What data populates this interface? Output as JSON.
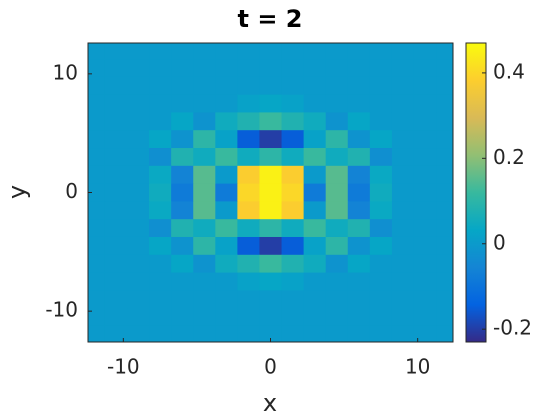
{
  "chart_data": {
    "type": "heatmap",
    "title": "t = 2",
    "x_label": "x",
    "y_label": "y",
    "colormap": "parula",
    "x": [
      -12,
      -10.5,
      -9,
      -7.5,
      -6,
      -4.5,
      -3,
      -1.5,
      0,
      1.5,
      3,
      4.5,
      6,
      7.5,
      9,
      10.5,
      12
    ],
    "y": [
      12,
      10.5,
      9,
      7.5,
      6,
      4.5,
      3,
      1.5,
      0,
      -1.5,
      -3,
      -4.5,
      -6,
      -7.5,
      -9,
      -10.5,
      -12
    ],
    "z": [
      [
        0,
        0,
        0,
        0,
        0,
        0,
        0,
        0,
        0,
        0,
        0,
        0,
        0,
        0,
        0,
        0,
        0
      ],
      [
        0,
        0,
        0,
        0,
        0,
        0,
        0,
        0,
        0,
        0,
        0,
        0,
        0,
        0,
        0,
        0,
        0
      ],
      [
        0,
        0,
        0,
        0,
        0,
        0,
        0,
        0,
        0,
        0,
        0,
        0,
        0,
        0,
        0,
        0,
        0
      ],
      [
        0,
        0,
        0,
        0,
        0,
        0,
        0,
        0.02,
        0.03,
        0.02,
        0,
        0,
        0,
        0,
        0,
        0,
        0
      ],
      [
        0,
        0,
        0,
        0,
        0.03,
        -0.02,
        0.05,
        0.08,
        0.12,
        0.08,
        0.05,
        -0.02,
        0.03,
        0,
        0,
        0,
        0
      ],
      [
        0,
        0,
        0,
        0.03,
        -0.02,
        0.1,
        0.02,
        -0.15,
        -0.2,
        -0.15,
        0.02,
        0.1,
        -0.02,
        0.03,
        0,
        0,
        0
      ],
      [
        0,
        0,
        0,
        -0.03,
        0.08,
        0.05,
        0.12,
        0.05,
        0.1,
        0.05,
        0.12,
        0.05,
        0.08,
        -0.03,
        0,
        0,
        0
      ],
      [
        0,
        0,
        0,
        0.04,
        -0.06,
        0.15,
        0,
        0.38,
        0.45,
        0.38,
        0,
        0.15,
        -0.06,
        0.04,
        0,
        0,
        0
      ],
      [
        0,
        0,
        0,
        0.05,
        -0.08,
        0.15,
        -0.08,
        0.4,
        0.45,
        0.4,
        -0.08,
        0.15,
        -0.08,
        0.05,
        0,
        0,
        0
      ],
      [
        0,
        0,
        0,
        0.04,
        -0.06,
        0.15,
        0,
        0.38,
        0.45,
        0.38,
        0,
        0.15,
        -0.06,
        0.04,
        0,
        0,
        0
      ],
      [
        0,
        0,
        0,
        -0.03,
        0.08,
        0.05,
        0.12,
        0.05,
        0.1,
        0.05,
        0.12,
        0.05,
        0.08,
        -0.03,
        0,
        0,
        0
      ],
      [
        0,
        0,
        0,
        0.03,
        -0.02,
        0.1,
        0.02,
        -0.15,
        -0.2,
        -0.15,
        0.02,
        0.1,
        -0.02,
        0.03,
        0,
        0,
        0
      ],
      [
        0,
        0,
        0,
        0,
        0.03,
        -0.02,
        0.05,
        0.08,
        0.12,
        0.08,
        0.05,
        -0.02,
        0.03,
        0,
        0,
        0,
        0
      ],
      [
        0,
        0,
        0,
        0,
        0,
        0,
        0,
        0.02,
        0.03,
        0.02,
        0,
        0,
        0,
        0,
        0,
        0,
        0
      ],
      [
        0,
        0,
        0,
        0,
        0,
        0,
        0,
        0,
        0,
        0,
        0,
        0,
        0,
        0,
        0,
        0,
        0
      ],
      [
        0,
        0,
        0,
        0,
        0,
        0,
        0,
        0,
        0,
        0,
        0,
        0,
        0,
        0,
        0,
        0,
        0
      ],
      [
        0,
        0,
        0,
        0,
        0,
        0,
        0,
        0,
        0,
        0,
        0,
        0,
        0,
        0,
        0,
        0,
        0
      ]
    ],
    "xlim": [
      -12.4,
      12.4
    ],
    "xticks": [
      -10,
      0,
      10
    ],
    "ylim": [
      -12.6,
      12.6
    ],
    "yticks": [
      -10,
      0,
      10
    ],
    "clim": [
      -0.23,
      0.47
    ],
    "cticks": [
      -0.2,
      0,
      0.2,
      0.4
    ]
  }
}
